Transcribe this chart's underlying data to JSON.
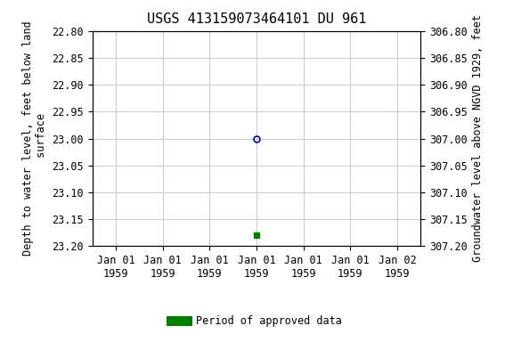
{
  "title": "USGS 413159073464101 DU 961",
  "left_ylabel_lines": [
    "Depth to water level, feet below land",
    " surface"
  ],
  "right_ylabel": "Groundwater level above NGVD 1929, feet",
  "ylim_left": [
    22.8,
    23.2
  ],
  "ylim_right": [
    307.2,
    306.8
  ],
  "yticks_left": [
    22.8,
    22.85,
    22.9,
    22.95,
    23.0,
    23.05,
    23.1,
    23.15,
    23.2
  ],
  "yticks_right": [
    307.2,
    307.15,
    307.1,
    307.05,
    307.0,
    306.95,
    306.9,
    306.85,
    306.8
  ],
  "xtick_labels": [
    "Jan 01\n1959",
    "Jan 01\n1959",
    "Jan 01\n1959",
    "Jan 01\n1959",
    "Jan 01\n1959",
    "Jan 01\n1959",
    "Jan 02\n1959"
  ],
  "x_positions": [
    0,
    1,
    2,
    3,
    4,
    5,
    6
  ],
  "xlim": [
    -0.5,
    6.5
  ],
  "point_blue_x": 3,
  "point_blue_y": 23.0,
  "point_green_x": 3,
  "point_green_y": 23.18,
  "blue_color": "#0000cc",
  "green_color": "#008000",
  "legend_label": "Period of approved data",
  "background_color": "#ffffff",
  "grid_color": "#cccccc",
  "title_fontsize": 11,
  "label_fontsize": 8.5,
  "tick_fontsize": 8.5
}
